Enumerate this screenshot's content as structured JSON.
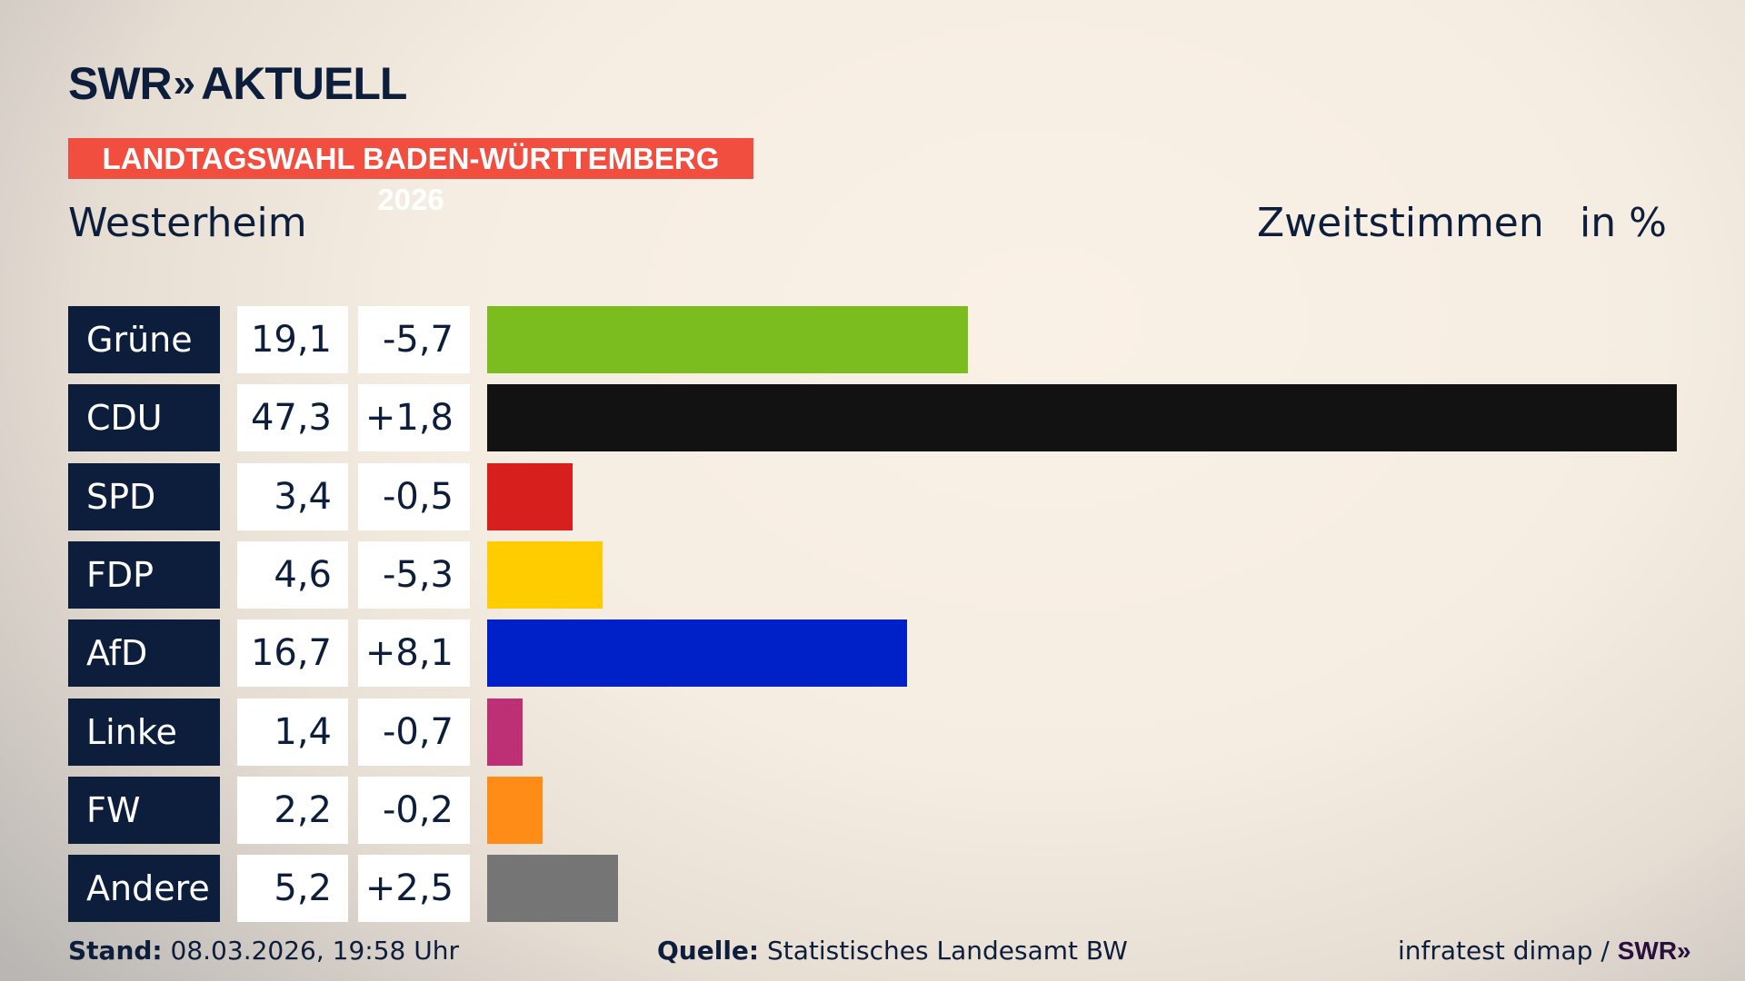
{
  "logo": {
    "brand": "SWR",
    "chevrons": "»",
    "product": "AKTUELL"
  },
  "banner": "LANDTAGSWAHL BADEN-WÜRTTEMBERG 2026",
  "place": "Westerheim",
  "header": {
    "vote_type": "Zweitstimmen",
    "unit": "in %"
  },
  "chart_data": {
    "type": "bar",
    "orientation": "horizontal",
    "categories": [
      "Grüne",
      "CDU",
      "SPD",
      "FDP",
      "AfD",
      "Linke",
      "FW",
      "Andere"
    ],
    "values": [
      19.1,
      47.3,
      3.4,
      4.6,
      16.7,
      1.4,
      2.2,
      5.2
    ],
    "values_label": [
      "19,1",
      "47,3",
      "3,4",
      "4,6",
      "16,7",
      "1,4",
      "2,2",
      "5,2"
    ],
    "diff_label": [
      "-5,7",
      "+1,8",
      "-0,5",
      "-5,3",
      "+8,1",
      "-0,7",
      "-0,2",
      "+2,5"
    ],
    "diff": [
      -5.7,
      1.8,
      -0.5,
      -5.3,
      8.1,
      -0.7,
      -0.2,
      2.5
    ],
    "colors": [
      "#7bbc1e",
      "#121212",
      "#d71f1d",
      "#ffcc00",
      "#0021c8",
      "#bd3075",
      "#ff8c17",
      "#757575"
    ],
    "xlim": [
      0,
      47.3
    ],
    "grid": false
  },
  "footer": {
    "stand_label": "Stand:",
    "stand_value": "08.03.2026, 19:58 Uhr",
    "source_label": "Quelle:",
    "source_value": "Statistisches Landesamt BW",
    "credit": "infratest dimap /",
    "credit_brand": "SWR»"
  }
}
